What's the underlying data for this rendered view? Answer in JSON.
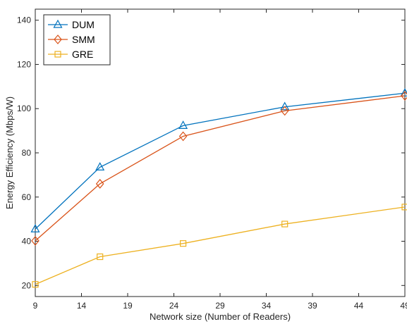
{
  "chart_data": {
    "type": "line",
    "title": "",
    "xlabel": "Network size (Number of Readers)",
    "ylabel": "Energy Efficiency (Mbps/W)",
    "xlim": [
      9,
      49
    ],
    "ylim": [
      15,
      145
    ],
    "xticks": [
      9,
      14,
      19,
      24,
      29,
      34,
      39,
      44,
      49
    ],
    "yticks": [
      20,
      40,
      60,
      80,
      100,
      120,
      140
    ],
    "x": [
      9,
      16,
      25,
      36,
      49
    ],
    "grid": false,
    "legend_position": "top-left",
    "series": [
      {
        "name": "DUM",
        "values": [
          45.5,
          73.5,
          92.3,
          100.8,
          107.0
        ],
        "color": "#0072BD",
        "marker": "triangle"
      },
      {
        "name": "SMM",
        "values": [
          40.2,
          66.0,
          87.5,
          99.0,
          105.8
        ],
        "color": "#D95319",
        "marker": "diamond"
      },
      {
        "name": "GRE",
        "values": [
          20.5,
          33.0,
          39.0,
          47.8,
          55.5
        ],
        "color": "#EDB120",
        "marker": "square"
      }
    ]
  }
}
